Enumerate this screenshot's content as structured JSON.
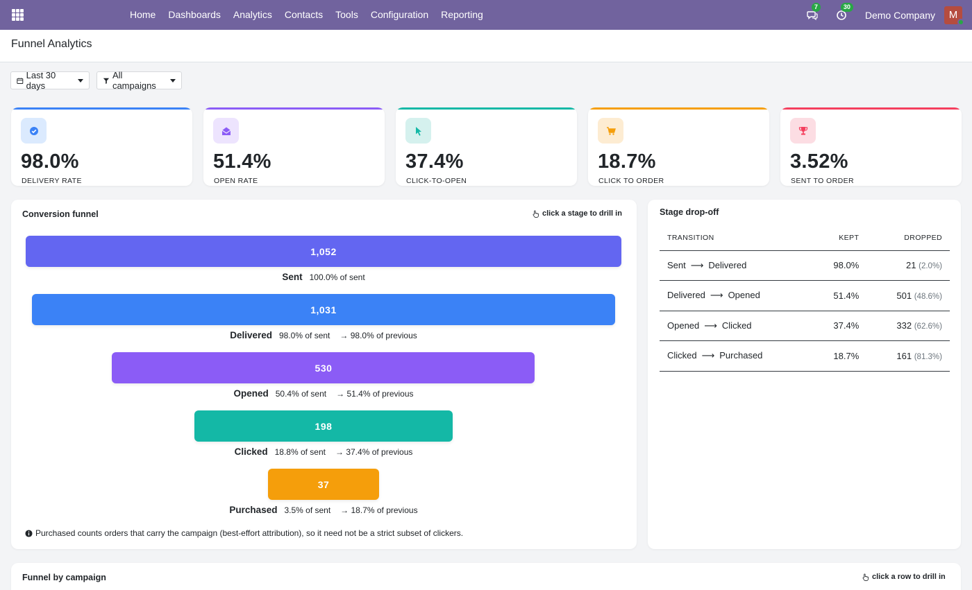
{
  "navbar": {
    "menu": [
      "Home",
      "Dashboards",
      "Analytics",
      "Contacts",
      "Tools",
      "Configuration",
      "Reporting"
    ],
    "messages_count": "7",
    "activities_count": "30",
    "company": "Demo Company",
    "avatar_initial": "M",
    "color": "#71639e"
  },
  "page": {
    "title": "Funnel Analytics"
  },
  "filters": {
    "period": "Last 30 days",
    "campaigns": "All campaigns"
  },
  "kpis": [
    {
      "value": "98.0%",
      "label": "Delivery rate",
      "icon": "check-circle-icon",
      "color": "#3b82f6"
    },
    {
      "value": "51.4%",
      "label": "Open rate",
      "icon": "envelope-open-icon",
      "color": "#8b5cf6"
    },
    {
      "value": "37.4%",
      "label": "Click-to-open",
      "icon": "cursor-pointer-icon",
      "color": "#14b8a6"
    },
    {
      "value": "18.7%",
      "label": "Click to order",
      "icon": "cart-icon",
      "color": "#f59e0b"
    },
    {
      "value": "3.52%",
      "label": "Sent to order",
      "icon": "trophy-icon",
      "color": "#f43f5e"
    }
  ],
  "funnel": {
    "title": "Conversion funnel",
    "hint": "click a stage to drill in",
    "stages": [
      {
        "name": "Sent",
        "count": "1,052",
        "of_sent": "100.0% of sent",
        "of_previous": "",
        "value": 1052,
        "color": "#6366f1"
      },
      {
        "name": "Delivered",
        "count": "1,031",
        "of_sent": "98.0% of sent",
        "of_previous": "→ 98.0% of previous",
        "value": 1031,
        "color": "#3b82f6"
      },
      {
        "name": "Opened",
        "count": "530",
        "of_sent": "50.4% of sent",
        "of_previous": "→ 51.4% of previous",
        "value": 530,
        "color": "#8b5cf6"
      },
      {
        "name": "Clicked",
        "count": "198",
        "of_sent": "18.8% of sent",
        "of_previous": "→ 37.4% of previous",
        "value": 198,
        "color": "#14b8a6"
      },
      {
        "name": "Purchased",
        "count": "37",
        "of_sent": "3.5% of sent",
        "of_previous": "→ 18.7% of previous",
        "value": 37,
        "color": "#f59e0b"
      }
    ],
    "note": "Purchased counts orders that carry the campaign (best-effort attribution), so it need not be a strict subset of clickers."
  },
  "dropoff": {
    "title": "Stage drop-off",
    "headers": {
      "transition": "Transition",
      "kept": "Kept",
      "dropped": "Dropped"
    },
    "rows": [
      {
        "from": "Sent",
        "to": "Delivered",
        "kept": "98.0%",
        "dropped": "21",
        "dropped_pct": "(2.0%)"
      },
      {
        "from": "Delivered",
        "to": "Opened",
        "kept": "51.4%",
        "dropped": "501",
        "dropped_pct": "(48.6%)"
      },
      {
        "from": "Opened",
        "to": "Clicked",
        "kept": "37.4%",
        "dropped": "332",
        "dropped_pct": "(62.6%)"
      },
      {
        "from": "Clicked",
        "to": "Purchased",
        "kept": "18.7%",
        "dropped": "161",
        "dropped_pct": "(81.3%)"
      }
    ]
  },
  "by_campaign": {
    "title": "Funnel by campaign",
    "hint": "click a row to drill in"
  }
}
